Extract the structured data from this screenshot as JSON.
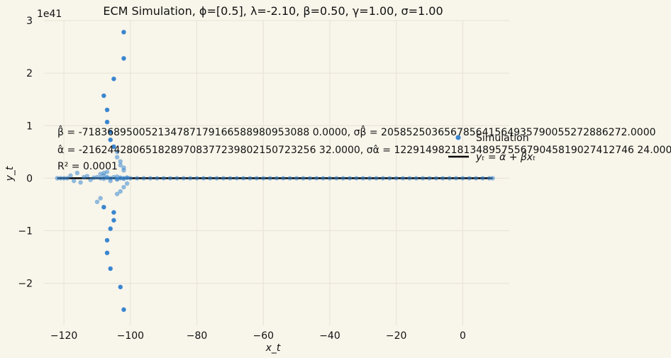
{
  "chart_data": {
    "type": "scatter",
    "title": "ECM Simulation, ϕ=[0.5], λ=-2.10, β=0.50, γ=1.00, σ=1.00",
    "xlabel": "x_t",
    "ylabel": "y_t",
    "y_multiplier": "1e41",
    "xlim": [
      -126,
      14
    ],
    "ylim": [
      -2.8,
      3.0
    ],
    "xticks": [
      -120,
      -100,
      -80,
      -60,
      -40,
      -20,
      0
    ],
    "xtick_labels": [
      "−120",
      "−100",
      "−80",
      "−60",
      "−40",
      "−20",
      "0"
    ],
    "yticks": [
      -2,
      -1,
      0,
      1,
      2,
      3
    ],
    "ytick_labels": [
      "−2",
      "−1",
      "0",
      "1",
      "2",
      "3"
    ],
    "grid": true,
    "legend": {
      "position": "right",
      "entries": [
        {
          "label": "Simulation",
          "kind": "marker"
        },
        {
          "label": "yₜ = α̂ + β̂xₜ",
          "kind": "line"
        }
      ]
    },
    "annotations": {
      "beta": "β̂ = -718368950052134787179166588980953088 0.0000, σβ̂ = 205852503656785641564935790055272886272.0000",
      "alpha": "α̂ = -2162442806518289708377239802150723256 32.0000, σα̂ = 12291498218134895755679045819027412746 24.0000",
      "r2": "R² = 0.0001"
    },
    "fit_line": {
      "alpha": 0,
      "beta": 0
    },
    "series": [
      {
        "name": "Simulation",
        "color": "#3a86d0",
        "x": [
          -102,
          -102,
          -105,
          -108,
          -107,
          -107,
          -106,
          -106,
          -105,
          -104,
          -104,
          -103,
          -103,
          -102,
          -102,
          -110,
          -109,
          -108,
          -107,
          -107,
          -106,
          -106,
          -105,
          -105,
          -104,
          -103,
          -103,
          -102,
          -102,
          -101,
          -107,
          -108,
          -109,
          -108,
          -107,
          -106,
          -104,
          -104,
          -103,
          -101,
          -102,
          -120,
          -118,
          -117,
          -116,
          -115,
          -114,
          -113,
          -112,
          -111,
          -110,
          -109,
          -108,
          -107,
          -106,
          -105,
          -104,
          -103,
          -102,
          -101,
          -100,
          -98,
          -96,
          -94,
          -92,
          -90,
          -88,
          -86,
          -84,
          -82,
          -80,
          -78,
          -76,
          -74,
          -72,
          -70,
          -68,
          -66,
          -64,
          -62,
          -60,
          -58,
          -56,
          -54,
          -52,
          -50,
          -48,
          -46,
          -44,
          -42,
          -40,
          -38,
          -36,
          -34,
          -32,
          -30,
          -28,
          -26,
          -24,
          -22,
          -20,
          -18,
          -16,
          -14,
          -12,
          -10,
          -8,
          -6,
          -4,
          -2,
          0,
          2,
          4,
          6,
          8,
          9,
          -122,
          -121,
          -119
        ],
        "y": [
          2.78,
          2.28,
          1.89,
          1.57,
          1.3,
          1.07,
          0.88,
          0.73,
          0.6,
          0.5,
          0.4,
          0.32,
          0.25,
          0.2,
          0.15,
          -0.45,
          -0.38,
          -0.55,
          -1.18,
          -1.42,
          -1.72,
          -0.96,
          -0.8,
          -0.65,
          -0.3,
          -0.25,
          -2.07,
          -2.5,
          -0.17,
          -0.1,
          0.12,
          0.05,
          0.08,
          0.1,
          0.02,
          -0.05,
          0.03,
          -0.02,
          0.0,
          0.01,
          -0.01,
          0.0,
          0.05,
          -0.05,
          0.1,
          -0.08,
          0.02,
          0.04,
          -0.03,
          0.01,
          0.02,
          0.0,
          -0.01,
          0.01,
          0.0,
          0.02,
          -0.02,
          0.01,
          0.0,
          0.01,
          0.0,
          0,
          0,
          0,
          0,
          0,
          0,
          0,
          0,
          0,
          0,
          0,
          0,
          0,
          0,
          0,
          0,
          0,
          0,
          0,
          0,
          0,
          0,
          0,
          0,
          0,
          0,
          0,
          0,
          0,
          0,
          0,
          0,
          0,
          0,
          0,
          0,
          0,
          0,
          0,
          0,
          0,
          0,
          0,
          0,
          0,
          0,
          0,
          0,
          0,
          0,
          0,
          0,
          0,
          0,
          0,
          0,
          0,
          0
        ]
      }
    ]
  }
}
